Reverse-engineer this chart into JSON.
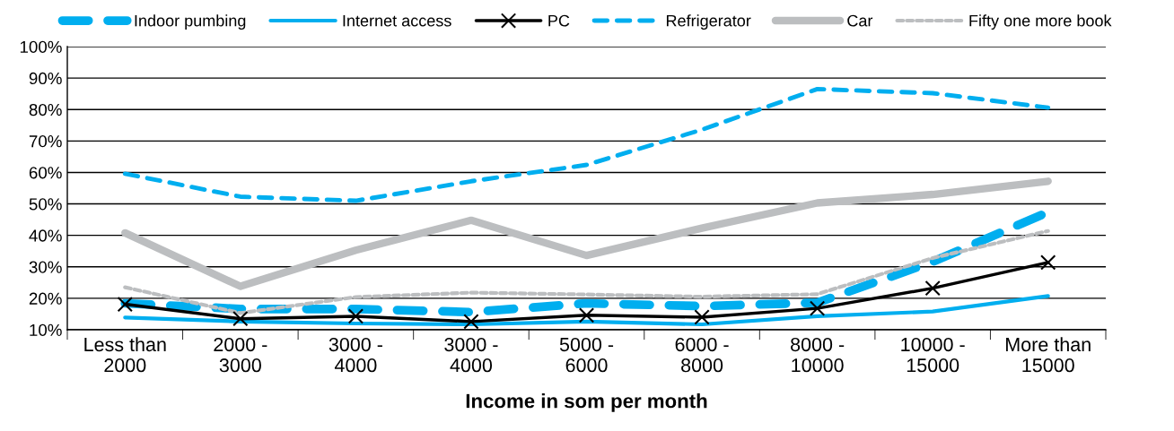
{
  "chart_data": {
    "type": "line",
    "xlabel": "Income in som per month",
    "categories": [
      "Less than\n2000",
      "2000 -\n3000",
      "3000 -\n4000",
      "3000 -\n4000",
      "5000 -\n6000",
      "6000 -\n8000",
      "8000 -\n10000",
      "10000 -\n15000",
      "More than\n15000"
    ],
    "series": [
      {
        "name": "Indoor pumbing",
        "color": "#00aeef",
        "line_style": "dashed",
        "values": [
          18.4,
          16.6,
          16.6,
          15.6,
          18.4,
          17.5,
          18.6,
          31.6,
          47.4
        ]
      },
      {
        "name": "Internet access",
        "color": "#00aeef",
        "line_style": "solid",
        "values": [
          13.9,
          12.6,
          12.0,
          11.7,
          12.6,
          11.7,
          14.3,
          15.8,
          20.7
        ]
      },
      {
        "name": "PC",
        "color": "#000000",
        "line_style": "solid",
        "marker": "cross",
        "values": [
          18.1,
          13.5,
          14.3,
          12.6,
          14.6,
          14.0,
          16.8,
          23.2,
          31.4
        ]
      },
      {
        "name": "Refrigerator",
        "color": "#00aeef",
        "line_style": "dashed",
        "values": [
          59.6,
          52.3,
          51.0,
          57.2,
          62.4,
          73.6,
          86.5,
          85.2,
          80.6
        ]
      },
      {
        "name": "Car",
        "color": "#bcbec0",
        "line_style": "solid",
        "values": [
          40.8,
          23.8,
          35.3,
          44.8,
          33.6,
          42.3,
          50.3,
          53.0,
          57.2
        ]
      },
      {
        "name": "Fifty one more book",
        "color": "#bcbec0",
        "line_style": "dotted",
        "values": [
          23.5,
          15.3,
          20.4,
          21.8,
          21.2,
          20.5,
          21.3,
          32.8,
          41.4
        ]
      }
    ],
    "ylim": [
      10,
      100
    ],
    "yticks": [
      {
        "value": 10,
        "label": "10%"
      },
      {
        "value": 20,
        "label": "20%"
      },
      {
        "value": 30,
        "label": "30%"
      },
      {
        "value": 40,
        "label": "40%"
      },
      {
        "value": 50,
        "label": "50%"
      },
      {
        "value": 60,
        "label": "60%"
      },
      {
        "value": 70,
        "label": "70%"
      },
      {
        "value": 80,
        "label": "80%"
      },
      {
        "value": 90,
        "label": "90%"
      },
      {
        "value": 100,
        "label": "100%"
      }
    ],
    "grid": "y",
    "legend": "top"
  }
}
